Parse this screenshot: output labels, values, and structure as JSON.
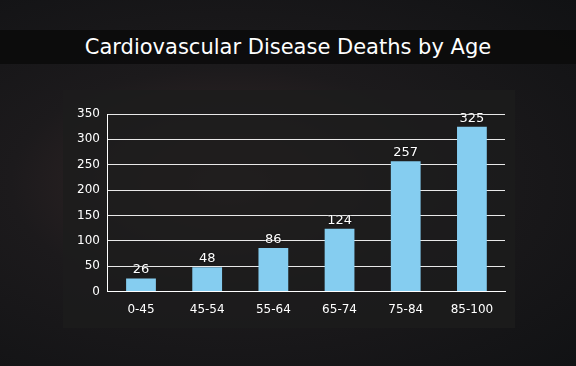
{
  "chart_data": {
    "type": "bar",
    "title": "Cardiovascular Disease Deaths by Age",
    "categories": [
      "0-45",
      "45-54",
      "55-64",
      "65-74",
      "75-84",
      "85-100"
    ],
    "values": [
      26,
      48,
      86,
      124,
      257,
      325
    ],
    "color": "#85cdf0",
    "ylim": [
      0,
      350
    ],
    "yticks": [
      0,
      50,
      100,
      150,
      200,
      250,
      300,
      350
    ],
    "grid": true,
    "data_labels": true
  }
}
